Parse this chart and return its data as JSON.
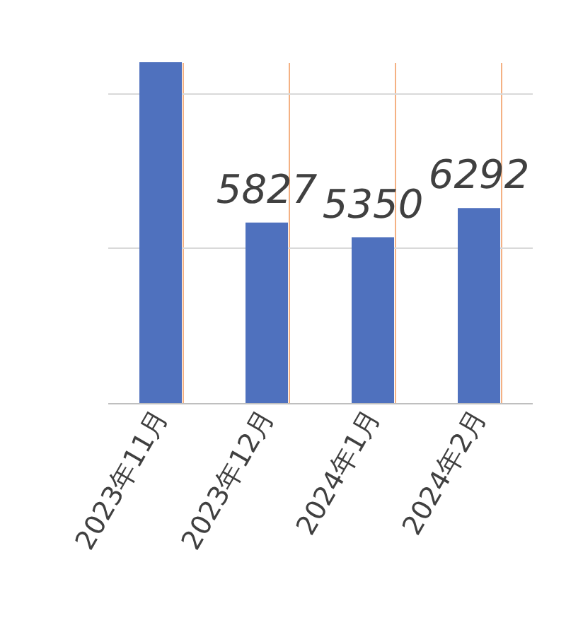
{
  "chart_data": {
    "type": "bar",
    "categories": [
      "2023年11月",
      "2023年12月",
      "2024年1月",
      "2024年2月"
    ],
    "values": [
      11000,
      5827,
      5350,
      6292
    ],
    "value_labels": [
      null,
      "5827",
      "5350",
      "6292"
    ],
    "color": "#4f71be",
    "ylim": [
      0,
      11000
    ],
    "yticks": [
      {
        "value": 0,
        "label": null
      },
      {
        "value": 5000,
        "label": null
      },
      {
        "value": 10000,
        "label": null
      }
    ],
    "tick_labels": "x",
    "grid": true
  }
}
